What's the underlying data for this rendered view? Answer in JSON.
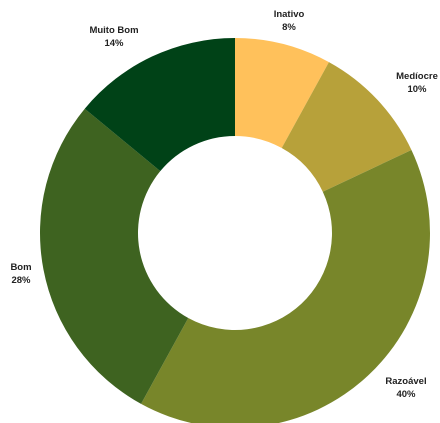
{
  "chart_data": {
    "type": "pie",
    "donut": true,
    "title": "",
    "slices": [
      {
        "label": "Inativo",
        "value": 8,
        "value_label": "8%",
        "color": "#FFC15B"
      },
      {
        "label": "Medíocre",
        "value": 10,
        "value_label": "10%",
        "color": "#B7A13A"
      },
      {
        "label": "Razoável",
        "value": 40,
        "value_label": "40%",
        "color": "#78862A"
      },
      {
        "label": "Bom",
        "value": 28,
        "value_label": "28%",
        "color": "#3E6320"
      },
      {
        "label": "Muito Bom",
        "value": 14,
        "value_label": "14%",
        "color": "#004217"
      }
    ],
    "legend": "none"
  }
}
